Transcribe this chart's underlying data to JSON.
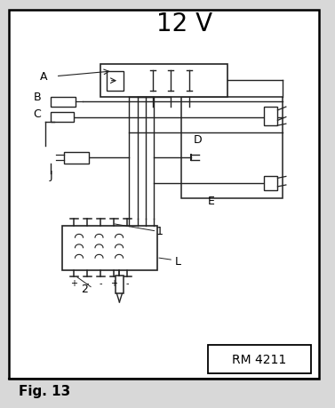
{
  "title": "12 V",
  "fig_label": "Fig. 13",
  "model_label": "RM 4211",
  "bg": "#d8d8d8",
  "white": "#ffffff",
  "lc": "#222222"
}
